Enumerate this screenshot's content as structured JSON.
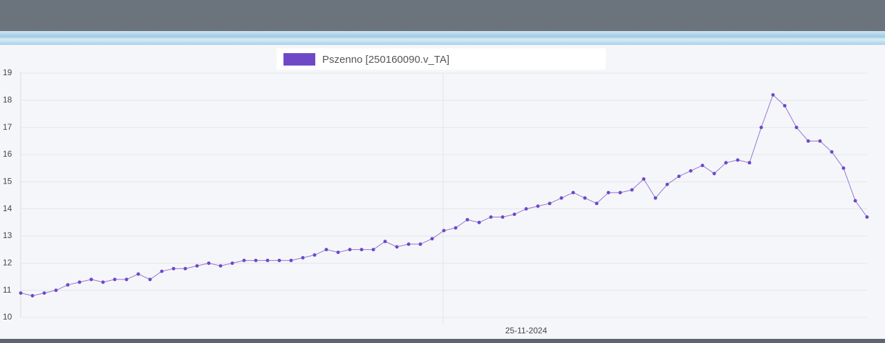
{
  "chart_data": {
    "type": "line",
    "categories": [
      null,
      null,
      null,
      null,
      null,
      null,
      null,
      null,
      null,
      null,
      null,
      null,
      null,
      null,
      null,
      null,
      null,
      null,
      null,
      null,
      null,
      null,
      null,
      null,
      null,
      null,
      null,
      null,
      null,
      null,
      null,
      null,
      null,
      null,
      null,
      null,
      null,
      null,
      null,
      null,
      null,
      null,
      null,
      "25-11-2024",
      null,
      null,
      null,
      null,
      null,
      null,
      null,
      null,
      null,
      null,
      null,
      null,
      null,
      null,
      null,
      null,
      null,
      null,
      null,
      null,
      null,
      null,
      null,
      null,
      null,
      null,
      null,
      null,
      null
    ],
    "series": [
      {
        "name": "Pszenno [250160090.v_TA]",
        "color": "#6f48c8",
        "values": [
          10.9,
          10.8,
          10.9,
          11.0,
          11.2,
          11.3,
          11.4,
          11.3,
          11.4,
          11.4,
          11.6,
          11.4,
          11.7,
          11.8,
          11.8,
          11.9,
          12.0,
          11.9,
          12.0,
          12.1,
          12.1,
          12.1,
          12.1,
          12.1,
          12.2,
          12.3,
          12.5,
          12.4,
          12.5,
          12.5,
          12.5,
          12.8,
          12.6,
          12.7,
          12.7,
          12.9,
          13.2,
          13.3,
          13.6,
          13.5,
          13.7,
          13.7,
          13.8,
          14.0,
          14.1,
          14.2,
          14.4,
          14.6,
          14.4,
          14.2,
          14.6,
          14.6,
          14.7,
          15.1,
          14.4,
          14.9,
          15.2,
          15.4,
          15.6,
          15.3,
          15.7,
          15.8,
          15.7,
          17.0,
          18.2,
          17.8,
          17.0,
          16.5,
          16.5,
          16.1,
          15.5,
          14.3,
          13.7
        ]
      }
    ],
    "ylim": [
      10,
      19
    ],
    "yticks": [
      10,
      11,
      12,
      13,
      14,
      15,
      16,
      17,
      18,
      19
    ],
    "grid": true
  }
}
